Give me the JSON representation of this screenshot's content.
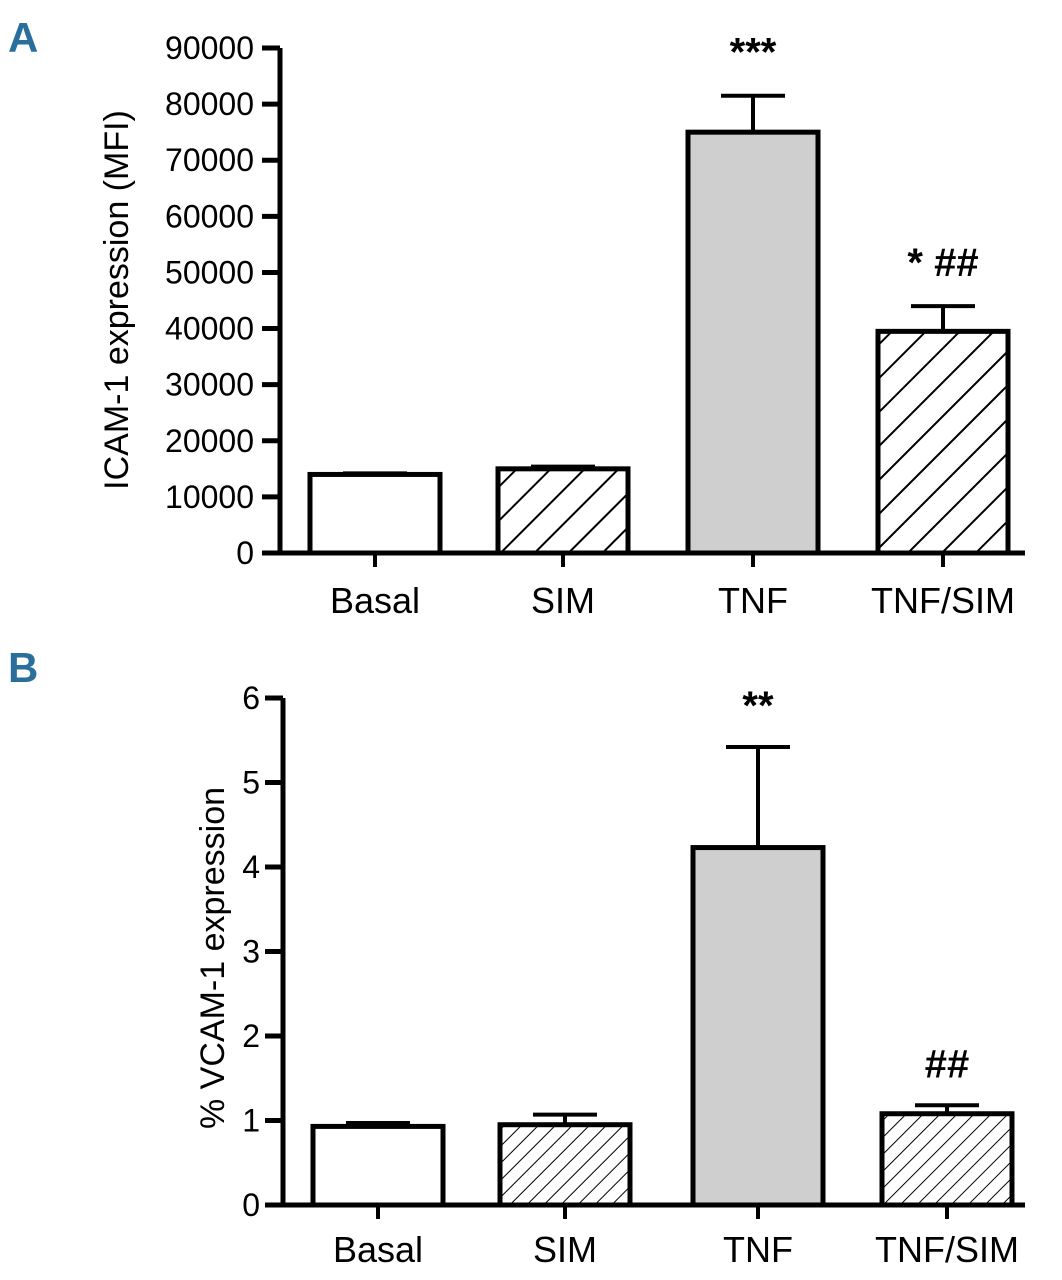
{
  "chart_data": [
    {
      "panel": "A",
      "type": "bar",
      "title": "",
      "xlabel": "",
      "ylabel": "ICAM-1 expression (MFI)",
      "categories": [
        "Basal",
        "SIM",
        "TNF",
        "TNF/SIM"
      ],
      "values": [
        14000,
        15000,
        75000,
        39500
      ],
      "errors": [
        200,
        400,
        6500,
        4500
      ],
      "fills": [
        "white",
        "hatch",
        "gray",
        "hatch"
      ],
      "annotations": [
        "",
        "",
        "***",
        "* ##"
      ],
      "ylim": [
        0,
        90000
      ],
      "yticks": [
        0,
        10000,
        20000,
        30000,
        40000,
        50000,
        60000,
        70000,
        80000,
        90000
      ],
      "ytick_labels": [
        "0",
        "10000",
        "20000",
        "30000",
        "40000",
        "50000",
        "60000",
        "70000",
        "80000",
        "90000"
      ],
      "grid": false
    },
    {
      "panel": "B",
      "type": "bar",
      "title": "",
      "xlabel": "",
      "ylabel": "% VCAM-1 expression",
      "categories": [
        "Basal",
        "SIM",
        "TNF",
        "TNF/SIM"
      ],
      "values": [
        0.93,
        0.95,
        4.23,
        1.08
      ],
      "errors": [
        0.04,
        0.12,
        1.19,
        0.1
      ],
      "fills": [
        "white",
        "hatch",
        "gray",
        "hatch"
      ],
      "annotations": [
        "",
        "",
        "**",
        "##"
      ],
      "ylim": [
        0,
        6
      ],
      "yticks": [
        0,
        1,
        2,
        3,
        4,
        5,
        6
      ],
      "ytick_labels": [
        "0",
        "1",
        "2",
        "3",
        "4",
        "5",
        "6"
      ],
      "grid": false
    }
  ],
  "colors": {
    "panel_letter": "#2a6f9c",
    "bar_gray": "#cfcfcf",
    "bar_white": "#ffffff",
    "stroke": "#000000"
  }
}
